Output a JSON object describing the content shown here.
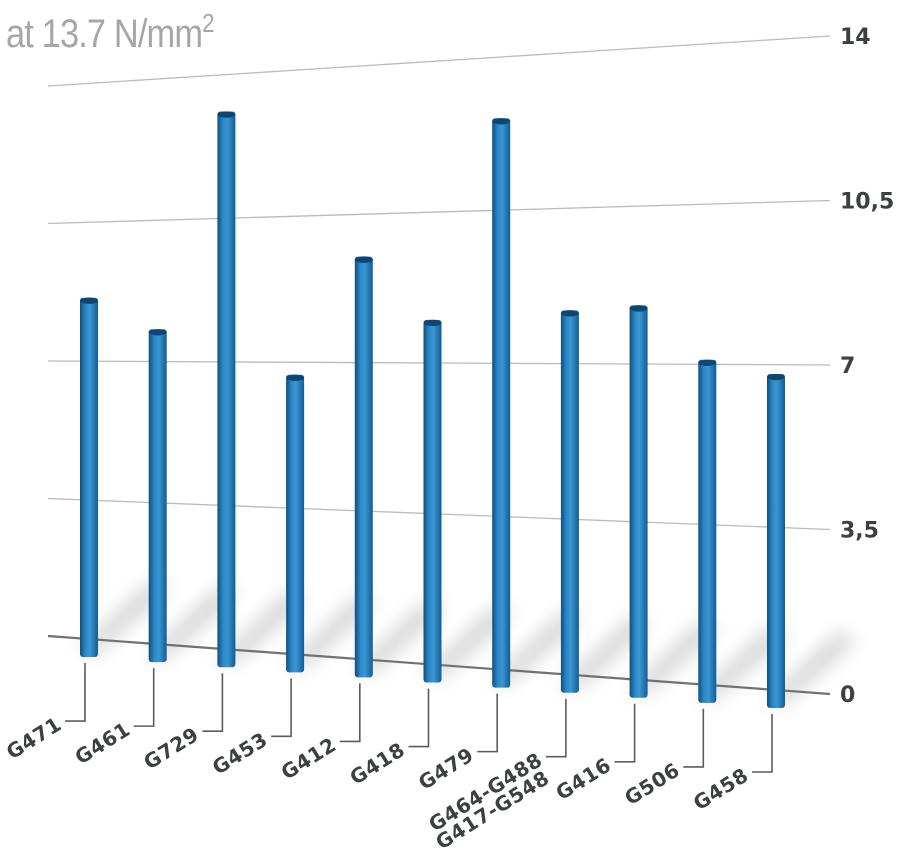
{
  "chart_data": {
    "type": "bar",
    "title": "at 13.7 N/mm",
    "title_superscript": "2",
    "categories": [
      "G471",
      "G461",
      "G729",
      "G453",
      "G412",
      "G418",
      "G479",
      "G464-G488\nG417-G548",
      "G416",
      "G506",
      "G458"
    ],
    "values": [
      8.6,
      7.8,
      13.1,
      6.7,
      9.5,
      8.0,
      12.6,
      8.2,
      8.3,
      7.1,
      6.8
    ],
    "yticks": [
      "0",
      "3,5",
      "7",
      "10,5",
      "14"
    ],
    "ylim": [
      0,
      14
    ],
    "grid": true,
    "bar_color": "#1f77b8",
    "xlabel": "",
    "ylabel": ""
  }
}
